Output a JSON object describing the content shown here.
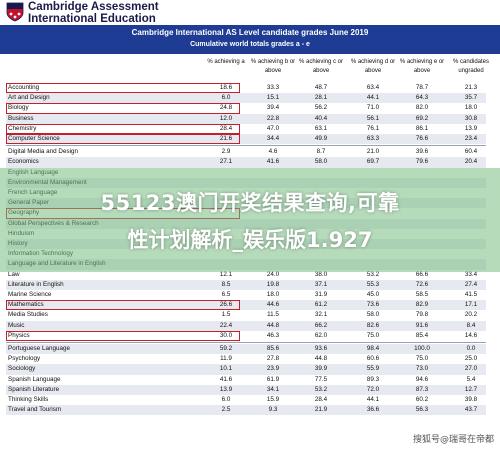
{
  "header": {
    "org_line1": "Cambridge Assessment",
    "org_line2": "International Education",
    "title": "Cambridge International AS Level candidate grades June 2019",
    "subtitle": "Cumulative world totals grades a - e"
  },
  "columns": [
    "% achieving a",
    "% achieving b or above",
    "% achieving c or above",
    "% achieving d or above",
    "% achieving e or above",
    "% candidates ungraded"
  ],
  "rows": [
    {
      "subject": "Accounting",
      "values": [
        "18.6",
        "33.3",
        "48.7",
        "63.4",
        "78.7",
        "21.3"
      ],
      "highlighted": true
    },
    {
      "subject": "Art and Design",
      "values": [
        "6.0",
        "15.1",
        "28.1",
        "44.1",
        "64.3",
        "35.7"
      ],
      "highlighted": false
    },
    {
      "subject": "Biology",
      "values": [
        "24.8",
        "39.4",
        "56.2",
        "71.0",
        "82.0",
        "18.0"
      ],
      "highlighted": true
    },
    {
      "subject": "Business",
      "values": [
        "12.0",
        "22.8",
        "40.4",
        "56.1",
        "69.2",
        "30.8"
      ],
      "highlighted": false
    },
    {
      "subject": "Chemistry",
      "values": [
        "28.4",
        "47.0",
        "63.1",
        "76.1",
        "86.1",
        "13.9"
      ],
      "highlighted": true
    },
    {
      "subject": "Computer Science",
      "values": [
        "21.6",
        "34.4",
        "49.9",
        "63.3",
        "76.6",
        "23.4"
      ],
      "highlighted": true
    },
    {
      "subject": "Digital Media and Design",
      "values": [
        "2.9",
        "4.6",
        "8.7",
        "21.0",
        "39.6",
        "60.4"
      ],
      "highlighted": false
    },
    {
      "subject": "Economics",
      "values": [
        "27.1",
        "41.6",
        "58.0",
        "69.7",
        "79.6",
        "20.4"
      ],
      "highlighted": false
    },
    {
      "subject": "English Language",
      "values": [
        "",
        "",
        "",
        "",
        "",
        ""
      ],
      "highlighted": false
    },
    {
      "subject": "Environmental Management",
      "values": [
        "",
        "",
        "",
        "",
        "",
        ""
      ],
      "highlighted": false
    },
    {
      "subject": "French Language",
      "values": [
        "",
        "",
        "",
        "",
        "",
        ""
      ],
      "highlighted": false
    },
    {
      "subject": "General Paper",
      "values": [
        "",
        "",
        "",
        "",
        "",
        ""
      ],
      "highlighted": false
    },
    {
      "subject": "Geography",
      "values": [
        "",
        "",
        "",
        "",
        "",
        ""
      ],
      "highlighted": true
    },
    {
      "subject": "Global Perspectives & Research",
      "values": [
        "",
        "",
        "",
        "",
        "",
        ""
      ],
      "highlighted": false
    },
    {
      "subject": "Hinduism",
      "values": [
        "",
        "",
        "",
        "",
        "",
        ""
      ],
      "highlighted": false
    },
    {
      "subject": "History",
      "values": [
        "",
        "",
        "",
        "",
        "",
        ""
      ],
      "highlighted": false
    },
    {
      "subject": "Information Technology",
      "values": [
        "",
        "",
        "",
        "",
        "",
        ""
      ],
      "highlighted": false
    },
    {
      "subject": "Language and Literature in English",
      "values": [
        "",
        "",
        "",
        "",
        "",
        ""
      ],
      "highlighted": false
    },
    {
      "subject": "Law",
      "values": [
        "12.1",
        "24.0",
        "38.0",
        "53.2",
        "66.6",
        "33.4"
      ],
      "highlighted": false
    },
    {
      "subject": "Literature in English",
      "values": [
        "8.5",
        "19.8",
        "37.1",
        "55.3",
        "72.6",
        "27.4"
      ],
      "highlighted": false
    },
    {
      "subject": "Marine Science",
      "values": [
        "6.5",
        "18.0",
        "31.9",
        "45.0",
        "58.5",
        "41.5"
      ],
      "highlighted": false
    },
    {
      "subject": "Mathematics",
      "values": [
        "26.6",
        "44.6",
        "61.2",
        "73.6",
        "82.9",
        "17.1"
      ],
      "highlighted": true
    },
    {
      "subject": "Media Studies",
      "values": [
        "1.5",
        "11.5",
        "32.1",
        "58.0",
        "79.8",
        "20.2"
      ],
      "highlighted": false
    },
    {
      "subject": "Music",
      "values": [
        "22.4",
        "44.8",
        "66.2",
        "82.6",
        "91.6",
        "8.4"
      ],
      "highlighted": false
    },
    {
      "subject": "Physics",
      "values": [
        "30.0",
        "46.3",
        "62.0",
        "75.0",
        "85.4",
        "14.6"
      ],
      "highlighted": true
    },
    {
      "subject": "Portuguese Language",
      "values": [
        "59.2",
        "85.6",
        "93.6",
        "98.4",
        "100.0",
        "0.0"
      ],
      "highlighted": false
    },
    {
      "subject": "Psychology",
      "values": [
        "11.9",
        "27.8",
        "44.8",
        "60.6",
        "75.0",
        "25.0"
      ],
      "highlighted": false
    },
    {
      "subject": "Sociology",
      "values": [
        "10.1",
        "23.9",
        "39.9",
        "55.9",
        "73.0",
        "27.0"
      ],
      "highlighted": false
    },
    {
      "subject": "Spanish Language",
      "values": [
        "41.6",
        "61.9",
        "77.5",
        "89.3",
        "94.6",
        "5.4"
      ],
      "highlighted": false
    },
    {
      "subject": "Spanish Literature",
      "values": [
        "13.9",
        "34.1",
        "53.2",
        "72.0",
        "87.3",
        "12.7"
      ],
      "highlighted": false
    },
    {
      "subject": "Thinking Skills",
      "values": [
        "6.0",
        "15.9",
        "28.4",
        "44.1",
        "60.2",
        "39.8"
      ],
      "highlighted": false
    },
    {
      "subject": "Travel and Tourism",
      "values": [
        "2.5",
        "9.3",
        "21.9",
        "36.6",
        "56.3",
        "43.7"
      ],
      "highlighted": false
    }
  ],
  "overlay": {
    "line1": "55123澳门开奖结果查询,可靠",
    "line2": "性计划解析_娱乐版1.927"
  },
  "watermark": "搜狐号@瑞哥在帝都",
  "colors": {
    "band": "#1f3c94",
    "highlight_border": "#c41f2b",
    "overlay_green": "#78be82"
  }
}
